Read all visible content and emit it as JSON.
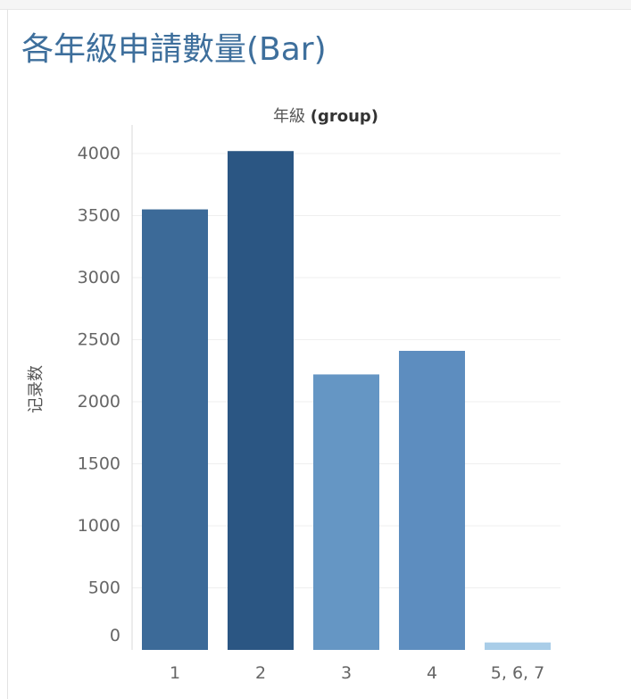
{
  "header": {
    "title": "各年級申請數量(Bar)",
    "column_label_zh": "年級",
    "column_label_field": "(group)"
  },
  "chart_data": {
    "type": "bar",
    "title": "各年級申請數量(Bar)",
    "xlabel": "年級 (group)",
    "ylabel": "记录数",
    "categories": [
      "1",
      "2",
      "3",
      "4",
      "5, 6, 7"
    ],
    "values": [
      3550,
      4020,
      2220,
      2410,
      60
    ],
    "colors": [
      "#3c6a98",
      "#2b5683",
      "#6596c4",
      "#5d8dbf",
      "#a9cde8"
    ],
    "ylim": [
      0,
      4000
    ],
    "yticks": [
      0,
      500,
      1000,
      1500,
      2000,
      2500,
      3000,
      3500,
      4000
    ],
    "grid": true,
    "legend": "none"
  }
}
